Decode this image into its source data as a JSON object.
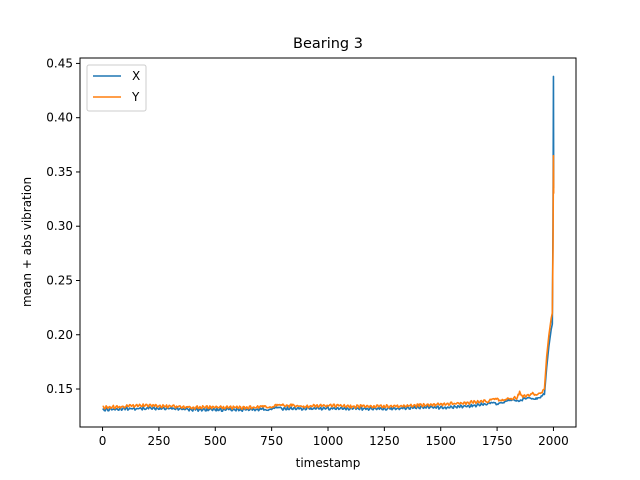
{
  "chart_data": {
    "type": "line",
    "title": "Bearing 3",
    "xlabel": "timestamp",
    "ylabel": "mean + abs vibration",
    "xlim": [
      -100,
      2100
    ],
    "ylim": [
      0.115,
      0.455
    ],
    "xticks": [
      0,
      250,
      500,
      750,
      1000,
      1250,
      1500,
      1750,
      2000
    ],
    "yticks": [
      0.15,
      0.2,
      0.25,
      0.3,
      0.35,
      0.4,
      0.45
    ],
    "ytick_labels": [
      "0.15",
      "0.20",
      "0.25",
      "0.30",
      "0.35",
      "0.40",
      "0.45"
    ],
    "grid": false,
    "legend": "upper-left",
    "series": [
      {
        "name": "X",
        "color": "#1f77b4",
        "points": [
          [
            0,
            0.131
          ],
          [
            100,
            0.132
          ],
          [
            200,
            0.132
          ],
          [
            300,
            0.132
          ],
          [
            400,
            0.131
          ],
          [
            500,
            0.131
          ],
          [
            600,
            0.131
          ],
          [
            700,
            0.131
          ],
          [
            750,
            0.132
          ],
          [
            800,
            0.132
          ],
          [
            900,
            0.132
          ],
          [
            1000,
            0.132
          ],
          [
            1100,
            0.132
          ],
          [
            1200,
            0.132
          ],
          [
            1300,
            0.132
          ],
          [
            1400,
            0.133
          ],
          [
            1500,
            0.133
          ],
          [
            1600,
            0.134
          ],
          [
            1700,
            0.136
          ],
          [
            1750,
            0.137
          ],
          [
            1800,
            0.139
          ],
          [
            1850,
            0.14
          ],
          [
            1900,
            0.141
          ],
          [
            1950,
            0.143
          ],
          [
            1960,
            0.145
          ],
          [
            1970,
            0.17
          ],
          [
            1980,
            0.19
          ],
          [
            1990,
            0.205
          ],
          [
            1995,
            0.21
          ],
          [
            1998,
            0.3
          ],
          [
            2000,
            0.438
          ],
          [
            2001,
            0.335
          ]
        ]
      },
      {
        "name": "Y",
        "color": "#ff7f0e",
        "points": [
          [
            0,
            0.133
          ],
          [
            100,
            0.134
          ],
          [
            200,
            0.135
          ],
          [
            300,
            0.134
          ],
          [
            400,
            0.133
          ],
          [
            500,
            0.133
          ],
          [
            600,
            0.133
          ],
          [
            700,
            0.133
          ],
          [
            750,
            0.134
          ],
          [
            800,
            0.135
          ],
          [
            900,
            0.134
          ],
          [
            1000,
            0.135
          ],
          [
            1100,
            0.134
          ],
          [
            1200,
            0.134
          ],
          [
            1300,
            0.134
          ],
          [
            1400,
            0.135
          ],
          [
            1500,
            0.136
          ],
          [
            1600,
            0.137
          ],
          [
            1700,
            0.139
          ],
          [
            1750,
            0.14
          ],
          [
            1800,
            0.141
          ],
          [
            1840,
            0.142
          ],
          [
            1850,
            0.148
          ],
          [
            1860,
            0.143
          ],
          [
            1900,
            0.145
          ],
          [
            1950,
            0.147
          ],
          [
            1960,
            0.15
          ],
          [
            1970,
            0.18
          ],
          [
            1980,
            0.2
          ],
          [
            1990,
            0.215
          ],
          [
            1995,
            0.22
          ],
          [
            1998,
            0.28
          ],
          [
            2000,
            0.365
          ],
          [
            2001,
            0.33
          ]
        ]
      }
    ]
  }
}
